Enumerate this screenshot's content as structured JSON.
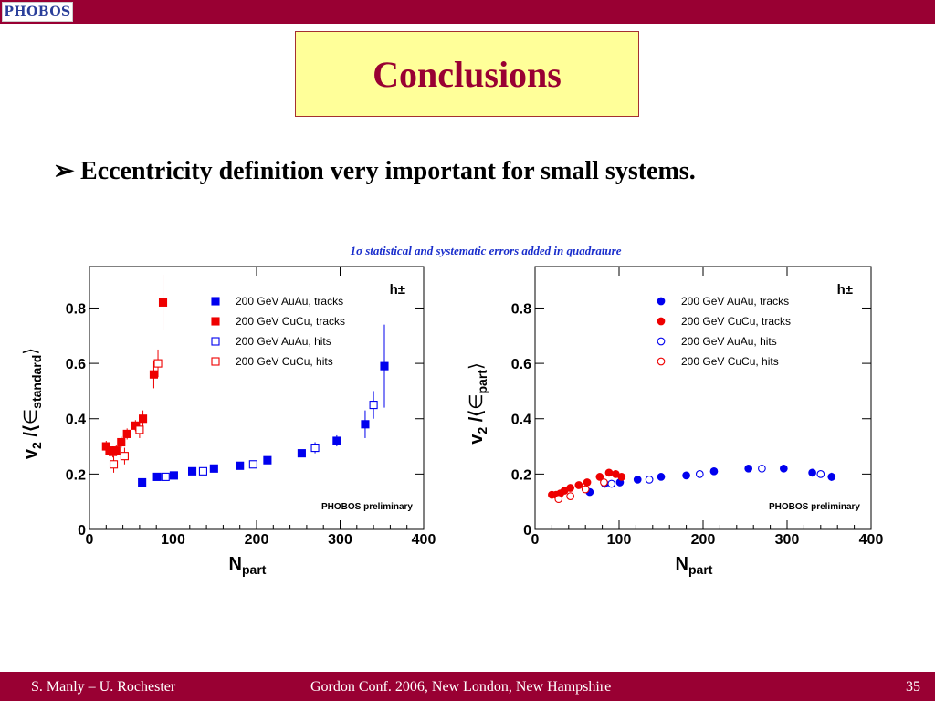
{
  "header": {
    "logo_text": "PHOBOS"
  },
  "slide": {
    "title": "Conclusions",
    "bullet_arrow": "➢",
    "bullet": "Eccentricity definition very important for small systems.",
    "error_note": "1σ statistical and systematic errors added in quadrature"
  },
  "footer": {
    "left": "S. Manly – U. Rochester",
    "center": "Gordon Conf. 2006, New London, New Hampshire",
    "right": "35"
  },
  "colors": {
    "accent": "#990033",
    "title_bg": "#ffff99",
    "blue": "#0000ee",
    "red": "#ee0000",
    "note": "#1a2ecc"
  },
  "chart_data": [
    {
      "type": "scatter",
      "ylabel_main": "v",
      "ylabel_sub": "2",
      "ylabel_mid": " /⟨",
      "ylabel_eps": "∈",
      "ylabel_eps_sub": "standard",
      "ylabel_close": "⟩",
      "xlabel_main": "N",
      "xlabel_sub": "part",
      "xlim": [
        0,
        400
      ],
      "ylim": [
        0,
        0.95
      ],
      "xticks": [
        "0",
        "100",
        "200",
        "300",
        "400"
      ],
      "xtick_values": [
        0,
        100,
        200,
        300,
        400
      ],
      "yticks": [
        "0",
        "0.2",
        "0.4",
        "0.6",
        "0.8"
      ],
      "ytick_values": [
        0,
        0.2,
        0.4,
        0.6,
        0.8
      ],
      "particle_label": "h±",
      "preliminary": "PHOBOS preliminary",
      "legend": [
        "200 GeV AuAu, tracks",
        "200 GeV CuCu, tracks",
        "200 GeV AuAu, hits",
        "200 GeV CuCu, hits"
      ],
      "marker": "square",
      "series": [
        {
          "name": "200 GeV AuAu, tracks",
          "color": "#0000ee",
          "filled": true,
          "x": [
            63,
            81,
            101,
            123,
            149,
            180,
            213,
            254,
            296,
            330,
            353
          ],
          "y": [
            0.17,
            0.19,
            0.195,
            0.21,
            0.22,
            0.23,
            0.25,
            0.275,
            0.32,
            0.38,
            0.59
          ],
          "err": [
            0.01,
            0.01,
            0.01,
            0.01,
            0.01,
            0.01,
            0.01,
            0.012,
            0.02,
            0.05,
            0.15
          ]
        },
        {
          "name": "200 GeV CuCu, tracks",
          "color": "#ee0000",
          "filled": true,
          "x": [
            20,
            24,
            28,
            32,
            38,
            45,
            55,
            64,
            77,
            88
          ],
          "y": [
            0.3,
            0.285,
            0.28,
            0.285,
            0.315,
            0.345,
            0.375,
            0.4,
            0.56,
            0.82
          ],
          "err": [
            0.02,
            0.02,
            0.02,
            0.02,
            0.02,
            0.02,
            0.02,
            0.03,
            0.05,
            0.1
          ]
        },
        {
          "name": "200 GeV AuAu, hits",
          "color": "#0000ee",
          "filled": false,
          "x": [
            91,
            136,
            196,
            270,
            340
          ],
          "y": [
            0.19,
            0.21,
            0.235,
            0.295,
            0.45
          ],
          "err": [
            0.01,
            0.01,
            0.01,
            0.02,
            0.05
          ]
        },
        {
          "name": "200 GeV CuCu, hits",
          "color": "#ee0000",
          "filled": false,
          "x": [
            29,
            42,
            60,
            82
          ],
          "y": [
            0.235,
            0.265,
            0.36,
            0.6
          ],
          "err": [
            0.03,
            0.03,
            0.03,
            0.05
          ]
        }
      ]
    },
    {
      "type": "scatter",
      "ylabel_main": "v",
      "ylabel_sub": "2",
      "ylabel_mid": " /⟨",
      "ylabel_eps": "∈",
      "ylabel_eps_sub": "part",
      "ylabel_close": "⟩",
      "xlabel_main": "N",
      "xlabel_sub": "part",
      "xlim": [
        0,
        400
      ],
      "ylim": [
        0,
        0.95
      ],
      "xticks": [
        "0",
        "100",
        "200",
        "300",
        "400"
      ],
      "xtick_values": [
        0,
        100,
        200,
        300,
        400
      ],
      "yticks": [
        "0",
        "0.2",
        "0.4",
        "0.6",
        "0.8"
      ],
      "ytick_values": [
        0,
        0.2,
        0.4,
        0.6,
        0.8
      ],
      "particle_label": "h±",
      "preliminary": "PHOBOS preliminary",
      "legend": [
        "200 GeV AuAu, tracks",
        "200 GeV CuCu, tracks",
        "200 GeV AuAu, hits",
        "200 GeV CuCu, hits"
      ],
      "marker": "circle",
      "series": [
        {
          "name": "200 GeV AuAu, tracks",
          "color": "#0000ee",
          "filled": true,
          "x": [
            65,
            83,
            101,
            122,
            150,
            180,
            213,
            254,
            296,
            330,
            353
          ],
          "y": [
            0.135,
            0.165,
            0.17,
            0.18,
            0.19,
            0.195,
            0.21,
            0.22,
            0.22,
            0.205,
            0.19
          ],
          "err": [
            0.005,
            0.005,
            0.005,
            0.005,
            0.005,
            0.005,
            0.005,
            0.005,
            0.005,
            0.01,
            0.015
          ]
        },
        {
          "name": "200 GeV CuCu, tracks",
          "color": "#ee0000",
          "filled": true,
          "x": [
            20,
            25,
            30,
            35,
            42,
            52,
            62,
            77,
            88,
            96,
            103
          ],
          "y": [
            0.125,
            0.125,
            0.13,
            0.14,
            0.15,
            0.16,
            0.17,
            0.19,
            0.205,
            0.2,
            0.19
          ],
          "err": [
            0.005,
            0.005,
            0.005,
            0.005,
            0.005,
            0.005,
            0.005,
            0.005,
            0.005,
            0.005,
            0.005
          ]
        },
        {
          "name": "200 GeV AuAu, hits",
          "color": "#0000ee",
          "filled": false,
          "x": [
            91,
            136,
            196,
            270,
            340
          ],
          "y": [
            0.165,
            0.18,
            0.2,
            0.22,
            0.2
          ],
          "err": [
            0.005,
            0.005,
            0.005,
            0.005,
            0.01
          ]
        },
        {
          "name": "200 GeV CuCu, hits",
          "color": "#ee0000",
          "filled": false,
          "x": [
            28,
            42,
            60,
            82
          ],
          "y": [
            0.11,
            0.12,
            0.145,
            0.17
          ],
          "err": [
            0.005,
            0.005,
            0.005,
            0.005
          ]
        }
      ]
    }
  ]
}
